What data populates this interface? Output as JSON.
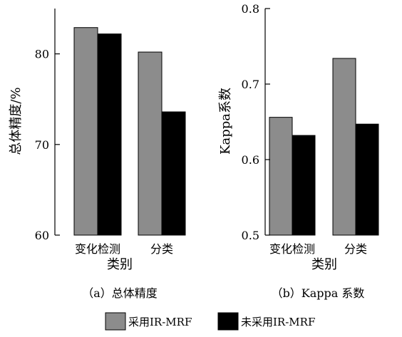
{
  "chart_data": [
    {
      "type": "bar",
      "ylabel": "总体精度/%",
      "xlabel": "类别",
      "caption": "（a）总体精度",
      "categories": [
        "变化检测",
        "分类"
      ],
      "ylim": [
        60,
        85
      ],
      "yticks": [
        60,
        70,
        80
      ],
      "series": [
        {
          "name": "采用IR-MRF",
          "color": "#8c8c8c",
          "values": [
            82.9,
            80.2
          ]
        },
        {
          "name": "未采用IR-MRF",
          "color": "#000000",
          "values": [
            82.2,
            73.6
          ]
        }
      ]
    },
    {
      "type": "bar",
      "ylabel": "Kappa系数",
      "xlabel": "类别",
      "caption": "（b）Kappa 系数",
      "categories": [
        "变化检测",
        "分类"
      ],
      "ylim": [
        0.5,
        0.8
      ],
      "yticks": [
        0.5,
        0.6,
        0.7,
        0.8
      ],
      "series": [
        {
          "name": "采用IR-MRF",
          "color": "#8c8c8c",
          "values": [
            0.656,
            0.734
          ]
        },
        {
          "name": "未采用IR-MRF",
          "color": "#000000",
          "values": [
            0.632,
            0.647
          ]
        }
      ]
    }
  ],
  "legend": [
    {
      "label": "采用IR-MRF",
      "color": "#8c8c8c"
    },
    {
      "label": "未采用IR-MRF",
      "color": "#000000"
    }
  ]
}
